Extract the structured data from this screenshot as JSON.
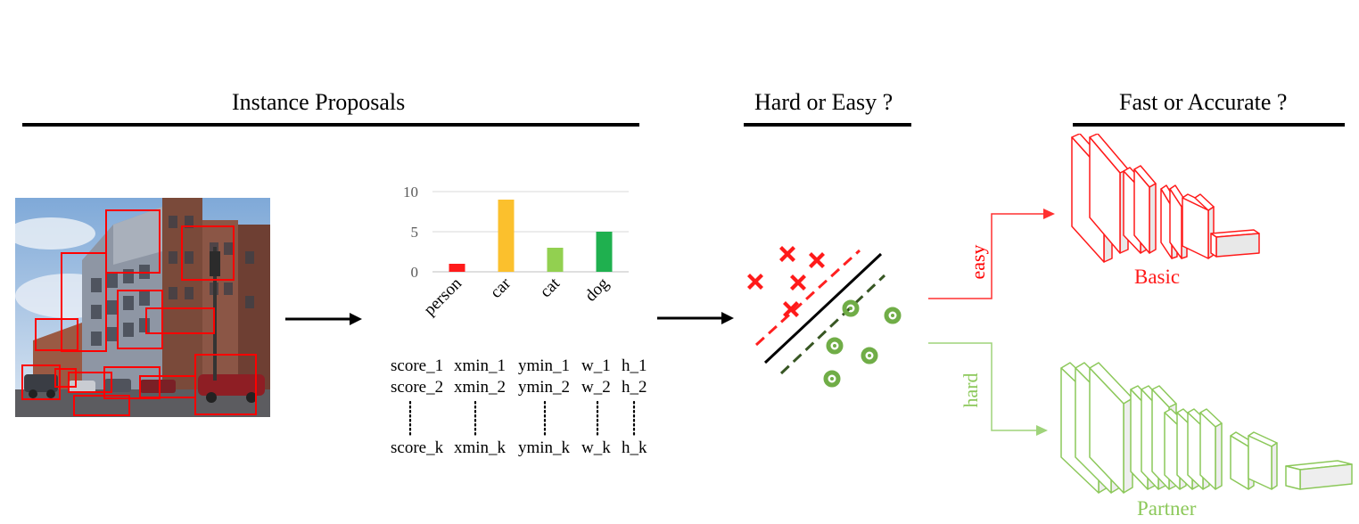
{
  "headings": {
    "proposals": "Instance Proposals",
    "hard_easy": "Hard or Easy ?",
    "fast_accurate": "Fast or Accurate ?"
  },
  "chart_data": {
    "type": "bar",
    "categories": [
      "person",
      "car",
      "cat",
      "dog"
    ],
    "values": [
      1,
      9,
      3,
      5
    ],
    "colors": [
      "#ff1a1a",
      "#fbc02d",
      "#92d050",
      "#1fb04f"
    ],
    "yticks": [
      0,
      5,
      10
    ],
    "ylim": [
      0,
      10
    ],
    "grid": true
  },
  "proposal_table": {
    "rows": [
      [
        "score_1",
        "xmin_1",
        "ymin_1",
        "w_1",
        "h_1"
      ],
      [
        "score_2",
        "xmin_2",
        "ymin_2",
        "w_2",
        "h_2"
      ],
      [
        "score_k",
        "xmin_k",
        "ymin_k",
        "w_k",
        "h_k"
      ]
    ]
  },
  "branches": {
    "easy_label": "easy",
    "hard_label": "hard",
    "basic_label": "Basic",
    "partner_label": "Partner"
  },
  "colors": {
    "red": "#ff0000",
    "green": "#8cc85a",
    "dark_green": "#375623"
  }
}
